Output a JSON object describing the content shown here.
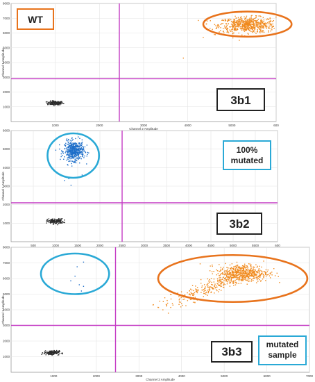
{
  "chart_data": [
    {
      "type": "scatter",
      "title": "",
      "xlabel": "Channel 2 Amplitude",
      "ylabel": "Channel 1 Amplitude",
      "xlim": [
        0,
        6000
      ],
      "ylim": [
        0,
        8000
      ],
      "x_ticks": [
        "1000",
        "2000",
        "3000",
        "4000",
        "5000",
        "600"
      ],
      "y_ticks": [
        "1000",
        "2000",
        "3000",
        "4000",
        "5000",
        "6000",
        "7000",
        "8000"
      ],
      "threshold_x": 2450,
      "threshold_y": 2900,
      "grid": true,
      "annotations": [
        "WT",
        "3b1"
      ],
      "clusters": [
        {
          "color": "#2b2b2b",
          "cx": 1000,
          "cy": 1250,
          "sx": 90,
          "sy": 70,
          "n": 140
        },
        {
          "color": "#f08a1e",
          "cx": 5350,
          "cy": 6550,
          "sx": 320,
          "sy": 260,
          "n": 650
        },
        {
          "color": "#f08a1e",
          "x": [
            4600,
            4800,
            4350,
            4700,
            3900,
            5100
          ],
          "y": [
            5900,
            6100,
            5700,
            6000,
            4300,
            6200
          ]
        }
      ],
      "highlight": {
        "shape": "ellipse",
        "color": "#e8731c",
        "cx": 5350,
        "cy": 6600,
        "rx": 1000,
        "ry": 850
      }
    },
    {
      "type": "scatter",
      "title": "",
      "xlabel": "Channel 2 Amplitude",
      "ylabel": "Channel 1 Amplitude",
      "xlim": [
        0,
        6000
      ],
      "ylim": [
        0,
        6000
      ],
      "x_ticks": [
        "500",
        "1000",
        "1500",
        "2000",
        "2500",
        "3000",
        "3500",
        "4000",
        "4500",
        "5000",
        "5500",
        "600"
      ],
      "y_ticks": [
        "1000",
        "2000",
        "3000",
        "4000",
        "5000",
        "6000"
      ],
      "threshold_x": 2500,
      "threshold_y": 2100,
      "grid": true,
      "annotations": [
        "100%\nmutated",
        "3b2"
      ],
      "clusters": [
        {
          "color": "#2b2b2b",
          "cx": 1000,
          "cy": 1100,
          "sx": 90,
          "sy": 70,
          "n": 150
        },
        {
          "color": "#1f6fc9",
          "cx": 1420,
          "cy": 4900,
          "sx": 110,
          "sy": 260,
          "n": 480
        },
        {
          "color": "#1f6fc9",
          "x": [
            1300,
            1600,
            1200,
            1700,
            1350
          ],
          "y": [
            3400,
            3600,
            3300,
            4200,
            3050
          ]
        }
      ],
      "highlight": {
        "shape": "ellipse",
        "color": "#2aa9d6",
        "cx": 1400,
        "cy": 4650,
        "rx": 580,
        "ry": 1200
      }
    },
    {
      "type": "scatter",
      "title": "",
      "xlabel": "Channel 2 Amplitude",
      "ylabel": "Channel 1 Amplitude",
      "xlim": [
        0,
        7000
      ],
      "ylim": [
        0,
        8000
      ],
      "x_ticks": [
        "1000",
        "2000",
        "3000",
        "4000",
        "5000",
        "6000",
        "7000"
      ],
      "y_ticks": [
        "1000",
        "2000",
        "3000",
        "4000",
        "5000",
        "6000",
        "7000",
        "8000"
      ],
      "threshold_x": 2450,
      "threshold_y": 3000,
      "grid": true,
      "annotations": [
        "3b3",
        "mutated\nsample"
      ],
      "clusters": [
        {
          "color": "#2b2b2b",
          "cx": 950,
          "cy": 1250,
          "sx": 90,
          "sy": 70,
          "n": 140
        },
        {
          "color": "#f08a1e",
          "cx": 5450,
          "cy": 6350,
          "sx": 300,
          "sy": 280,
          "n": 520
        },
        {
          "color": "#f08a1e",
          "trail": true,
          "x0": 3400,
          "y0": 3900,
          "x1": 5300,
          "y1": 6200,
          "n": 260
        },
        {
          "color": "#1f6fc9",
          "x": [
            1700,
            1550,
            1500,
            1400,
            1600,
            1700,
            1650
          ],
          "y": [
            7050,
            6750,
            6150,
            5850,
            5600,
            5500,
            5200
          ]
        }
      ],
      "highlights": [
        {
          "shape": "ellipse",
          "color": "#2aa9d6",
          "cx": 1500,
          "cy": 6300,
          "rx": 800,
          "ry": 1300
        },
        {
          "shape": "ellipse",
          "color": "#e8731c",
          "cx": 5200,
          "cy": 6000,
          "rx": 1750,
          "ry": 1500
        }
      ]
    }
  ]
}
